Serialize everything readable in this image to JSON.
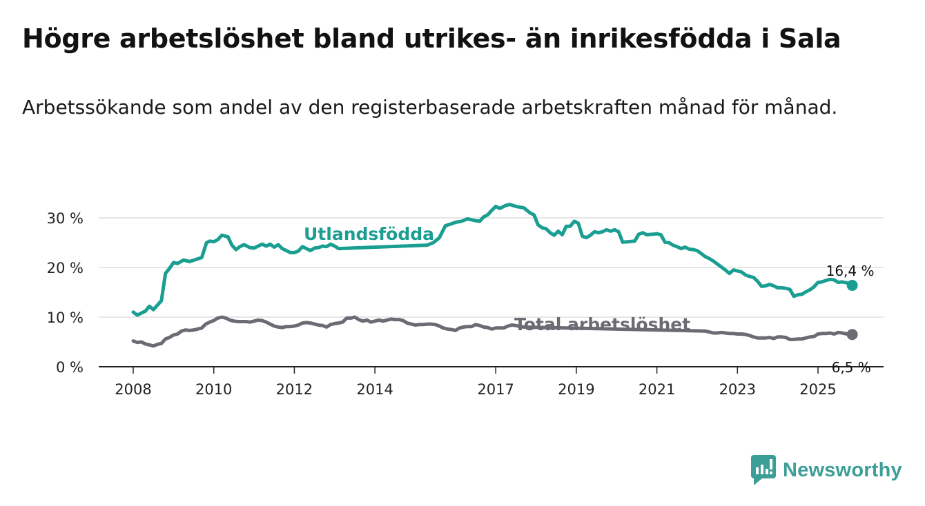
{
  "chart_data": {
    "type": "line",
    "title": "Högre arbetslöshet bland utrikes- än inrikesfödda i Sala",
    "subtitle": "Arbetssökande som andel av den registerbaserade arbetskraften månad för månad.",
    "y_ticks": [
      "0 %",
      "10 %",
      "20 %",
      "30 %"
    ],
    "y_tick_values": [
      0,
      10,
      20,
      30
    ],
    "x_ticks": [
      "2008",
      "2010",
      "2012",
      "2014",
      "2017",
      "2019",
      "2021",
      "2023",
      "2025"
    ],
    "x_tick_values": [
      2008,
      2010,
      2012,
      2014,
      2017,
      2019,
      2021,
      2023,
      2025
    ],
    "xlim": [
      2007.2,
      2026.6
    ],
    "ylim": [
      0,
      33
    ],
    "grid": true,
    "series": [
      {
        "name": "Utlandsfödda",
        "color": "#1a9e92",
        "end_label": "16,4 %",
        "points": [
          [
            2008.0,
            11.0
          ],
          [
            2008.1,
            10.4
          ],
          [
            2008.3,
            11.2
          ],
          [
            2008.4,
            12.2
          ],
          [
            2008.5,
            11.5
          ],
          [
            2008.6,
            12.4
          ],
          [
            2008.7,
            13.3
          ],
          [
            2008.8,
            18.8
          ],
          [
            2008.9,
            19.8
          ],
          [
            2009.0,
            21.0
          ],
          [
            2009.1,
            20.8
          ],
          [
            2009.25,
            21.5
          ],
          [
            2009.4,
            21.2
          ],
          [
            2009.55,
            21.6
          ],
          [
            2009.7,
            22.0
          ],
          [
            2009.82,
            25.0
          ],
          [
            2009.9,
            25.3
          ],
          [
            2010.0,
            25.2
          ],
          [
            2010.1,
            25.6
          ],
          [
            2010.2,
            26.5
          ],
          [
            2010.35,
            26.2
          ],
          [
            2010.45,
            24.5
          ],
          [
            2010.55,
            23.6
          ],
          [
            2010.65,
            24.2
          ],
          [
            2010.75,
            24.6
          ],
          [
            2010.9,
            24.0
          ],
          [
            2011.0,
            23.9
          ],
          [
            2011.1,
            24.3
          ],
          [
            2011.2,
            24.7
          ],
          [
            2011.3,
            24.3
          ],
          [
            2011.4,
            24.7
          ],
          [
            2011.5,
            24.1
          ],
          [
            2011.6,
            24.6
          ],
          [
            2011.7,
            23.8
          ],
          [
            2011.8,
            23.4
          ],
          [
            2011.9,
            23.0
          ],
          [
            2012.0,
            23.0
          ],
          [
            2012.1,
            23.3
          ],
          [
            2012.2,
            24.2
          ],
          [
            2012.3,
            23.8
          ],
          [
            2012.4,
            23.4
          ],
          [
            2012.5,
            23.9
          ],
          [
            2012.6,
            24.0
          ],
          [
            2012.7,
            24.3
          ],
          [
            2012.8,
            24.2
          ],
          [
            2012.9,
            24.7
          ],
          [
            2013.0,
            24.3
          ],
          [
            2013.1,
            23.8
          ],
          [
            2015.3,
            24.5
          ],
          [
            2015.45,
            25.0
          ],
          [
            2015.6,
            26.0
          ],
          [
            2015.75,
            28.4
          ],
          [
            2015.9,
            28.8
          ],
          [
            2016.0,
            29.1
          ],
          [
            2016.15,
            29.3
          ],
          [
            2016.3,
            29.8
          ],
          [
            2016.45,
            29.5
          ],
          [
            2016.6,
            29.3
          ],
          [
            2016.7,
            30.2
          ],
          [
            2016.8,
            30.6
          ],
          [
            2016.9,
            31.5
          ],
          [
            2017.0,
            32.3
          ],
          [
            2017.1,
            31.9
          ],
          [
            2017.25,
            32.5
          ],
          [
            2017.35,
            32.7
          ],
          [
            2017.5,
            32.3
          ],
          [
            2017.7,
            32.0
          ],
          [
            2017.85,
            31.0
          ],
          [
            2017.95,
            30.6
          ],
          [
            2018.05,
            28.6
          ],
          [
            2018.15,
            28.0
          ],
          [
            2018.25,
            27.8
          ],
          [
            2018.35,
            27.0
          ],
          [
            2018.45,
            26.5
          ],
          [
            2018.55,
            27.3
          ],
          [
            2018.65,
            26.6
          ],
          [
            2018.75,
            28.3
          ],
          [
            2018.85,
            28.3
          ],
          [
            2018.95,
            29.3
          ],
          [
            2019.05,
            28.9
          ],
          [
            2019.15,
            26.3
          ],
          [
            2019.25,
            26.0
          ],
          [
            2019.35,
            26.5
          ],
          [
            2019.45,
            27.2
          ],
          [
            2019.55,
            27.0
          ],
          [
            2019.65,
            27.2
          ],
          [
            2019.75,
            27.6
          ],
          [
            2019.85,
            27.3
          ],
          [
            2019.95,
            27.6
          ],
          [
            2020.05,
            27.2
          ],
          [
            2020.15,
            25.1
          ],
          [
            2020.3,
            25.2
          ],
          [
            2020.45,
            25.3
          ],
          [
            2020.55,
            26.7
          ],
          [
            2020.65,
            27.0
          ],
          [
            2020.75,
            26.6
          ],
          [
            2020.9,
            26.7
          ],
          [
            2021.0,
            26.8
          ],
          [
            2021.1,
            26.6
          ],
          [
            2021.2,
            25.1
          ],
          [
            2021.3,
            25.0
          ],
          [
            2021.4,
            24.5
          ],
          [
            2021.5,
            24.2
          ],
          [
            2021.6,
            23.8
          ],
          [
            2021.7,
            24.1
          ],
          [
            2021.8,
            23.7
          ],
          [
            2021.9,
            23.6
          ],
          [
            2022.0,
            23.4
          ],
          [
            2022.1,
            22.8
          ],
          [
            2022.2,
            22.2
          ],
          [
            2022.3,
            21.8
          ],
          [
            2022.4,
            21.3
          ],
          [
            2022.5,
            20.7
          ],
          [
            2022.6,
            20.1
          ],
          [
            2022.7,
            19.5
          ],
          [
            2022.8,
            18.8
          ],
          [
            2022.9,
            19.5
          ],
          [
            2023.0,
            19.3
          ],
          [
            2023.1,
            19.1
          ],
          [
            2023.2,
            18.5
          ],
          [
            2023.3,
            18.2
          ],
          [
            2023.4,
            18.0
          ],
          [
            2023.5,
            17.2
          ],
          [
            2023.6,
            16.2
          ],
          [
            2023.7,
            16.3
          ],
          [
            2023.8,
            16.6
          ],
          [
            2023.9,
            16.3
          ],
          [
            2024.0,
            15.9
          ],
          [
            2024.1,
            15.9
          ],
          [
            2024.2,
            15.8
          ],
          [
            2024.3,
            15.6
          ],
          [
            2024.4,
            14.2
          ],
          [
            2024.5,
            14.5
          ],
          [
            2024.6,
            14.6
          ],
          [
            2024.7,
            15.1
          ],
          [
            2024.8,
            15.5
          ],
          [
            2024.9,
            16.1
          ],
          [
            2025.0,
            17.0
          ],
          [
            2025.1,
            17.1
          ],
          [
            2025.2,
            17.4
          ],
          [
            2025.3,
            17.6
          ],
          [
            2025.4,
            17.5
          ],
          [
            2025.5,
            17.0
          ],
          [
            2025.6,
            17.1
          ],
          [
            2025.72,
            16.9
          ],
          [
            2025.85,
            16.4
          ]
        ]
      },
      {
        "name": "Total arbetslöshet",
        "color": "#6c6a73",
        "end_label": "6,5 %",
        "points": [
          [
            2008.0,
            5.2
          ],
          [
            2008.1,
            4.9
          ],
          [
            2008.2,
            5.0
          ],
          [
            2008.3,
            4.6
          ],
          [
            2008.4,
            4.4
          ],
          [
            2008.5,
            4.2
          ],
          [
            2008.6,
            4.5
          ],
          [
            2008.7,
            4.7
          ],
          [
            2008.8,
            5.6
          ],
          [
            2008.9,
            5.9
          ],
          [
            2009.0,
            6.4
          ],
          [
            2009.1,
            6.6
          ],
          [
            2009.2,
            7.2
          ],
          [
            2009.3,
            7.4
          ],
          [
            2009.4,
            7.3
          ],
          [
            2009.5,
            7.4
          ],
          [
            2009.6,
            7.6
          ],
          [
            2009.7,
            7.8
          ],
          [
            2009.8,
            8.6
          ],
          [
            2009.9,
            9.0
          ],
          [
            2010.0,
            9.3
          ],
          [
            2010.1,
            9.8
          ],
          [
            2010.2,
            10.0
          ],
          [
            2010.3,
            9.8
          ],
          [
            2010.4,
            9.4
          ],
          [
            2010.5,
            9.2
          ],
          [
            2010.6,
            9.1
          ],
          [
            2010.8,
            9.1
          ],
          [
            2010.9,
            9.0
          ],
          [
            2011.0,
            9.2
          ],
          [
            2011.1,
            9.4
          ],
          [
            2011.2,
            9.3
          ],
          [
            2011.3,
            9.0
          ],
          [
            2011.4,
            8.6
          ],
          [
            2011.5,
            8.2
          ],
          [
            2011.6,
            8.0
          ],
          [
            2011.7,
            7.9
          ],
          [
            2011.8,
            8.1
          ],
          [
            2011.9,
            8.1
          ],
          [
            2012.0,
            8.2
          ],
          [
            2012.1,
            8.4
          ],
          [
            2012.2,
            8.8
          ],
          [
            2012.3,
            8.9
          ],
          [
            2012.4,
            8.8
          ],
          [
            2012.5,
            8.6
          ],
          [
            2012.6,
            8.4
          ],
          [
            2012.7,
            8.3
          ],
          [
            2012.8,
            8.0
          ],
          [
            2012.9,
            8.5
          ],
          [
            2013.0,
            8.7
          ],
          [
            2013.1,
            8.8
          ],
          [
            2013.2,
            9.0
          ],
          [
            2013.3,
            9.8
          ],
          [
            2013.4,
            9.8
          ],
          [
            2013.5,
            10.0
          ],
          [
            2013.6,
            9.5
          ],
          [
            2013.7,
            9.2
          ],
          [
            2013.8,
            9.4
          ],
          [
            2013.9,
            9.0
          ],
          [
            2014.0,
            9.2
          ],
          [
            2014.1,
            9.4
          ],
          [
            2014.2,
            9.2
          ],
          [
            2014.3,
            9.4
          ],
          [
            2014.4,
            9.6
          ],
          [
            2014.5,
            9.5
          ],
          [
            2014.6,
            9.5
          ],
          [
            2014.7,
            9.3
          ],
          [
            2014.8,
            8.8
          ],
          [
            2014.9,
            8.6
          ],
          [
            2015.0,
            8.4
          ],
          [
            2015.1,
            8.5
          ],
          [
            2015.2,
            8.5
          ],
          [
            2015.3,
            8.6
          ],
          [
            2015.4,
            8.6
          ],
          [
            2015.5,
            8.5
          ],
          [
            2015.6,
            8.2
          ],
          [
            2015.7,
            7.8
          ],
          [
            2015.8,
            7.6
          ],
          [
            2015.9,
            7.5
          ],
          [
            2016.0,
            7.3
          ],
          [
            2016.1,
            7.8
          ],
          [
            2016.2,
            8.0
          ],
          [
            2016.3,
            8.1
          ],
          [
            2016.4,
            8.1
          ],
          [
            2016.5,
            8.5
          ],
          [
            2016.6,
            8.3
          ],
          [
            2016.7,
            8.0
          ],
          [
            2016.8,
            7.9
          ],
          [
            2016.9,
            7.6
          ],
          [
            2017.0,
            7.8
          ],
          [
            2017.1,
            7.8
          ],
          [
            2017.2,
            7.8
          ],
          [
            2017.3,
            8.2
          ],
          [
            2017.4,
            8.4
          ],
          [
            2017.5,
            8.3
          ],
          [
            2017.6,
            8.1
          ],
          [
            2017.7,
            8.0
          ],
          [
            2022.2,
            7.2
          ],
          [
            2022.3,
            7.0
          ],
          [
            2022.4,
            6.8
          ],
          [
            2022.5,
            6.8
          ],
          [
            2022.6,
            6.9
          ],
          [
            2022.7,
            6.8
          ],
          [
            2022.8,
            6.7
          ],
          [
            2022.9,
            6.7
          ],
          [
            2023.0,
            6.6
          ],
          [
            2023.1,
            6.6
          ],
          [
            2023.2,
            6.5
          ],
          [
            2023.3,
            6.3
          ],
          [
            2023.4,
            6.0
          ],
          [
            2023.5,
            5.8
          ],
          [
            2023.6,
            5.8
          ],
          [
            2023.7,
            5.8
          ],
          [
            2023.8,
            5.9
          ],
          [
            2023.9,
            5.7
          ],
          [
            2024.0,
            6.0
          ],
          [
            2024.1,
            6.0
          ],
          [
            2024.2,
            5.9
          ],
          [
            2024.3,
            5.5
          ],
          [
            2024.4,
            5.5
          ],
          [
            2024.5,
            5.6
          ],
          [
            2024.6,
            5.6
          ],
          [
            2024.7,
            5.8
          ],
          [
            2024.8,
            6.0
          ],
          [
            2024.9,
            6.1
          ],
          [
            2025.0,
            6.6
          ],
          [
            2025.1,
            6.7
          ],
          [
            2025.2,
            6.7
          ],
          [
            2025.3,
            6.8
          ],
          [
            2025.4,
            6.6
          ],
          [
            2025.5,
            6.9
          ],
          [
            2025.6,
            6.8
          ],
          [
            2025.72,
            6.6
          ],
          [
            2025.85,
            6.5
          ]
        ]
      }
    ]
  },
  "logo": {
    "text": "Newsworthy",
    "color": "#3d9e98"
  }
}
